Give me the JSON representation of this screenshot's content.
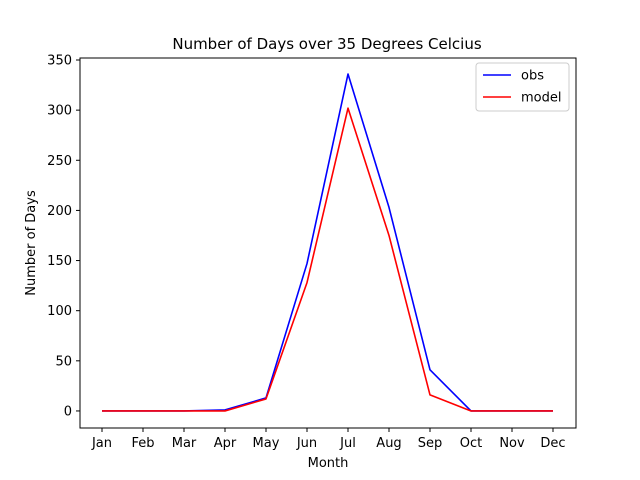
{
  "chart_data": {
    "type": "line",
    "title": "Number of Days over 35 Degrees Celcius",
    "xlabel": "Month",
    "ylabel": "Number of Days",
    "categories": [
      "Jan",
      "Feb",
      "Mar",
      "Apr",
      "May",
      "Jun",
      "Jul",
      "Aug",
      "Sep",
      "Oct",
      "Nov",
      "Dec"
    ],
    "series": [
      {
        "name": "obs",
        "color": "#0000ff",
        "values": [
          0,
          0,
          0,
          1,
          13,
          147,
          336,
          203,
          41,
          0,
          0,
          0
        ]
      },
      {
        "name": "model",
        "color": "#ff0000",
        "values": [
          0,
          0,
          0,
          0,
          12,
          128,
          302,
          175,
          16,
          0,
          0,
          0
        ]
      }
    ],
    "yticks": [
      0,
      50,
      100,
      150,
      200,
      250,
      300,
      350
    ],
    "ylim": [
      -17,
      352
    ],
    "grid": false,
    "legend_position": "top-right"
  }
}
